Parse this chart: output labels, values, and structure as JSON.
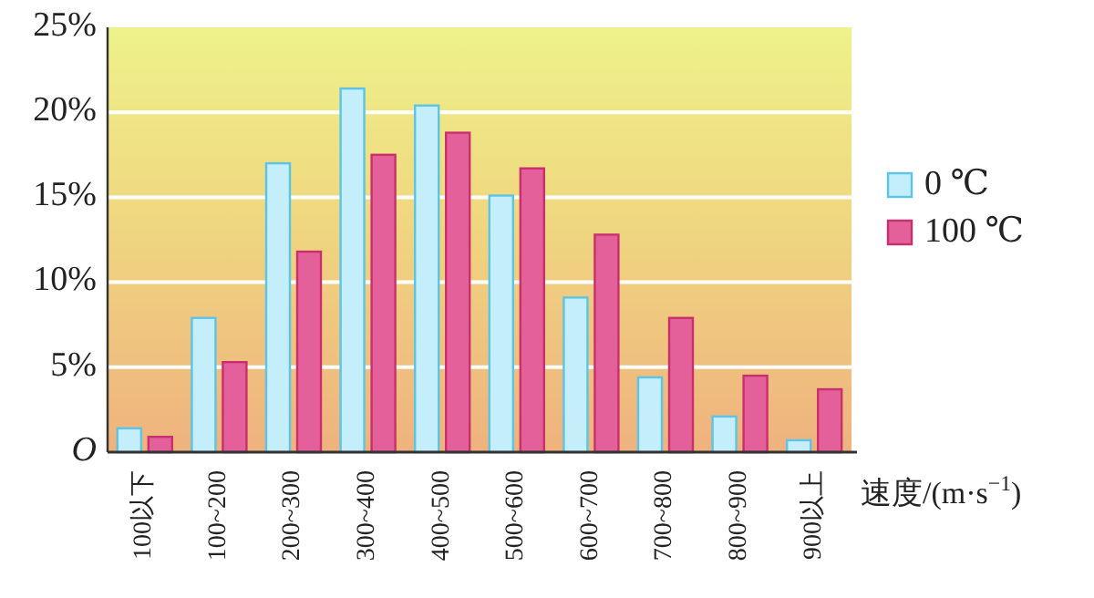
{
  "chart_data": {
    "type": "bar",
    "categories": [
      "100以下",
      "100~200",
      "200~300",
      "300~400",
      "400~500",
      "500~600",
      "600~700",
      "700~800",
      "800~900",
      "900以上"
    ],
    "series": [
      {
        "name": "0 ℃",
        "color": "#c4eef9",
        "values": [
          1.4,
          7.9,
          17.0,
          21.4,
          20.4,
          15.1,
          9.1,
          4.4,
          2.1,
          0.7
        ]
      },
      {
        "name": "100 ℃",
        "color": "#e4609a",
        "values": [
          0.9,
          5.3,
          11.8,
          17.5,
          18.8,
          16.7,
          12.8,
          7.9,
          4.5,
          3.7
        ]
      }
    ],
    "xlabel": "速度/(m·s$^{−1}$)",
    "ylim": [
      0,
      25
    ],
    "yticks": [
      {
        "value": 0,
        "label": "O"
      },
      {
        "value": 5,
        "label": "5%"
      },
      {
        "value": 10,
        "label": "10%"
      },
      {
        "value": 15,
        "label": "15%"
      },
      {
        "value": 20,
        "label": "20%"
      },
      {
        "value": 25,
        "label": "25%"
      }
    ],
    "grid": "y",
    "legend": "right"
  }
}
